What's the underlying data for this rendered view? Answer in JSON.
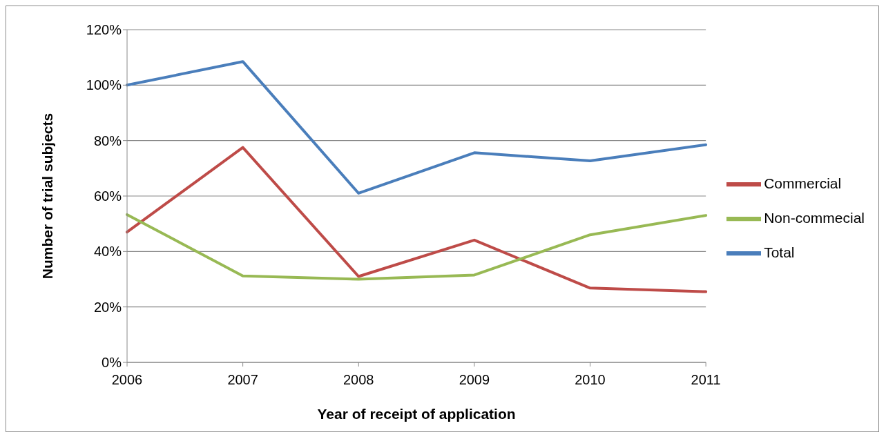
{
  "chart_data": {
    "type": "line",
    "xlabel": "Year of receipt of application",
    "ylabel": "Number of trial subjects",
    "categories": [
      "2006",
      "2007",
      "2008",
      "2009",
      "2010",
      "2011"
    ],
    "series": [
      {
        "name": "Total",
        "color": "#4a7ebb",
        "values": [
          100,
          108.5,
          61,
          75.6,
          72.7,
          78.5
        ]
      },
      {
        "name": "Commercial",
        "color": "#be4b48",
        "values": [
          47,
          77.5,
          31,
          44.1,
          26.8,
          25.5
        ]
      },
      {
        "name": "Non-commecial",
        "color": "#98b954",
        "values": [
          53.3,
          31.2,
          30,
          31.5,
          46,
          53
        ]
      }
    ],
    "ylim": [
      0,
      120
    ],
    "yticks": [
      {
        "value": 0,
        "label": "0%"
      },
      {
        "value": 20,
        "label": "20%"
      },
      {
        "value": 40,
        "label": "40%"
      },
      {
        "value": 60,
        "label": "60%"
      },
      {
        "value": 80,
        "label": "80%"
      },
      {
        "value": 100,
        "label": "100%"
      },
      {
        "value": 120,
        "label": "120%"
      }
    ],
    "grid": "y",
    "legend": "right",
    "marker": "none",
    "line_style": "solid"
  }
}
